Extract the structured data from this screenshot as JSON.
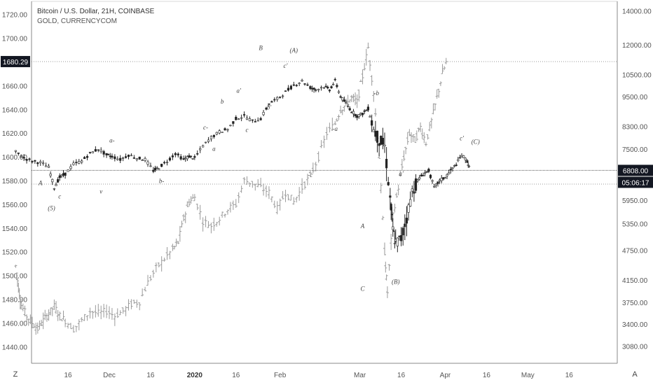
{
  "legend": {
    "primary": "Bitcoin / U.S. Dollar, 21H, COINBASE",
    "secondary": "GOLD, CURRENCYCOM"
  },
  "corner": {
    "left": "Z",
    "right": "A"
  },
  "colors": {
    "main_candle": "#222222",
    "secondary_bar": "#9a9a9a",
    "axis_text": "#555555",
    "grid": "#e6e6e6",
    "badge_dark": "#131722",
    "badge_text": "#ffffff"
  },
  "chart_data": {
    "type": "line",
    "left_axis": {
      "series": "GOLD, CURRENCYCOM",
      "ticks": [
        1440,
        1460,
        1480,
        1500,
        1520,
        1540,
        1560,
        1580,
        1600,
        1620,
        1640,
        1660,
        1680,
        1700,
        1720
      ],
      "tick_labels": [
        "1440.00",
        "1460.00",
        "1480.00",
        "1500.00",
        "1520.00",
        "1540.00",
        "1560.00",
        "1580.00",
        "1600.00",
        "1620.00",
        "1640.00",
        "1660.00",
        "1680.00",
        "1700.00",
        "1720.00"
      ],
      "range": [
        1426,
        1731
      ],
      "current_value": "1680.29",
      "reference_level": 1577
    },
    "right_axis": {
      "series": "Bitcoin / U.S. Dollar, 21H, COINBASE",
      "scale": "log",
      "ticks": [
        3080,
        3400,
        3750,
        4150,
        4750,
        5350,
        5950,
        6800,
        7500,
        8300,
        9500,
        10500,
        12000,
        14000
      ],
      "tick_labels": [
        "3080.00",
        "3400.00",
        "3750.00",
        "4150.00",
        "4750.00",
        "5350.00",
        "5950.00",
        "6800.00",
        "7500.00",
        "8300.00",
        "9500.00",
        "10500.00",
        "12000.00",
        "14000.00"
      ],
      "range": [
        2850,
        14600
      ],
      "current_value": "6808.00",
      "countdown": "05:06:17"
    },
    "x_axis": {
      "labels": [
        "16",
        "Dec",
        "16",
        "2020",
        "16",
        "Feb",
        "Mar",
        "16",
        "Apr",
        "16",
        "May",
        "16"
      ],
      "label_days": [
        -15,
        0,
        15,
        31,
        46,
        62,
        91,
        106,
        122,
        137,
        152,
        167
      ],
      "bold": [
        "2020"
      ]
    },
    "bitcoin_path": [
      [
        -34,
        7400
      ],
      [
        -31,
        7200
      ],
      [
        -28,
        7100
      ],
      [
        -25,
        7050
      ],
      [
        -22,
        6900
      ],
      [
        -20,
        6300
      ],
      [
        -18,
        6600
      ],
      [
        -16,
        6700
      ],
      [
        -13,
        7000
      ],
      [
        -10,
        7100
      ],
      [
        -7,
        7350
      ],
      [
        -4,
        7500
      ],
      [
        -1,
        7300
      ],
      [
        1,
        7250
      ],
      [
        4,
        7150
      ],
      [
        7,
        7300
      ],
      [
        10,
        7200
      ],
      [
        13,
        7150
      ],
      [
        16,
        6800
      ],
      [
        18,
        6900
      ],
      [
        21,
        7100
      ],
      [
        24,
        7350
      ],
      [
        27,
        7150
      ],
      [
        29,
        7250
      ],
      [
        31,
        7200
      ],
      [
        34,
        7600
      ],
      [
        37,
        7900
      ],
      [
        40,
        8100
      ],
      [
        43,
        8200
      ],
      [
        46,
        8600
      ],
      [
        49,
        8700
      ],
      [
        52,
        8500
      ],
      [
        55,
        8600
      ],
      [
        58,
        9200
      ],
      [
        61,
        9400
      ],
      [
        64,
        9700
      ],
      [
        67,
        10000
      ],
      [
        70,
        10200
      ],
      [
        73,
        9900
      ],
      [
        75,
        9800
      ],
      [
        78,
        9950
      ],
      [
        80,
        9800
      ],
      [
        82,
        10200
      ],
      [
        84,
        9500
      ],
      [
        86,
        9200
      ],
      [
        88,
        8900
      ],
      [
        90,
        8700
      ],
      [
        92,
        8800
      ],
      [
        94,
        9000
      ],
      [
        96,
        8200
      ],
      [
        98,
        7800
      ],
      [
        100,
        7600
      ],
      [
        102,
        6000
      ],
      [
        103,
        5200
      ],
      [
        104,
        4900
      ],
      [
        106,
        5000
      ],
      [
        108,
        5500
      ],
      [
        110,
        6200
      ],
      [
        112,
        6500
      ],
      [
        114,
        6700
      ],
      [
        116,
        6800
      ],
      [
        118,
        6300
      ],
      [
        120,
        6500
      ],
      [
        122,
        6600
      ],
      [
        124,
        6800
      ],
      [
        126,
        7000
      ],
      [
        128,
        7300
      ],
      [
        130,
        7100
      ],
      [
        131,
        6808
      ]
    ],
    "gold_path": [
      [
        -34,
        1508
      ],
      [
        -33,
        1490
      ],
      [
        -32,
        1475
      ],
      [
        -30,
        1466
      ],
      [
        -28,
        1460
      ],
      [
        -26,
        1455
      ],
      [
        -24,
        1462
      ],
      [
        -22,
        1468
      ],
      [
        -20,
        1474
      ],
      [
        -18,
        1466
      ],
      [
        -16,
        1462
      ],
      [
        -13,
        1455
      ],
      [
        -10,
        1462
      ],
      [
        -7,
        1470
      ],
      [
        -4,
        1468
      ],
      [
        -1,
        1470
      ],
      [
        2,
        1466
      ],
      [
        5,
        1470
      ],
      [
        8,
        1476
      ],
      [
        11,
        1478
      ],
      [
        14,
        1494
      ],
      [
        17,
        1506
      ],
      [
        20,
        1514
      ],
      [
        23,
        1522
      ],
      [
        25,
        1528
      ],
      [
        27,
        1548
      ],
      [
        29,
        1562
      ],
      [
        31,
        1566
      ],
      [
        34,
        1546
      ],
      [
        37,
        1542
      ],
      [
        40,
        1548
      ],
      [
        43,
        1556
      ],
      [
        46,
        1560
      ],
      [
        49,
        1580
      ],
      [
        52,
        1578
      ],
      [
        55,
        1574
      ],
      [
        58,
        1570
      ],
      [
        61,
        1556
      ],
      [
        64,
        1570
      ],
      [
        67,
        1562
      ],
      [
        70,
        1574
      ],
      [
        73,
        1584
      ],
      [
        76,
        1600
      ],
      [
        79,
        1620
      ],
      [
        82,
        1628
      ],
      [
        84,
        1640
      ],
      [
        86,
        1644
      ],
      [
        88,
        1650
      ],
      [
        90,
        1646
      ],
      [
        92,
        1668
      ],
      [
        94,
        1692
      ],
      [
        96,
        1654
      ],
      [
        98,
        1600
      ],
      [
        100,
        1520
      ],
      [
        101,
        1486
      ],
      [
        103,
        1550
      ],
      [
        105,
        1574
      ],
      [
        107,
        1600
      ],
      [
        109,
        1620
      ],
      [
        111,
        1614
      ],
      [
        113,
        1625
      ],
      [
        115,
        1612
      ],
      [
        117,
        1630
      ],
      [
        119,
        1650
      ],
      [
        121,
        1670
      ],
      [
        123,
        1684
      ]
    ],
    "annotations": [
      {
        "text": "(A)",
        "day": 67,
        "price": 1688,
        "axis": "left"
      },
      {
        "text": "B",
        "day": 55,
        "price": 1690,
        "axis": "left"
      },
      {
        "text": "c'",
        "day": 64,
        "price": 1675,
        "axis": "left"
      },
      {
        "text": "a'",
        "day": 47,
        "price": 1654,
        "axis": "left"
      },
      {
        "text": "b",
        "day": 41,
        "price": 1645,
        "axis": "left"
      },
      {
        "text": "b'",
        "day": 58,
        "price": 1640,
        "axis": "left"
      },
      {
        "text": "c",
        "day": 50,
        "price": 1621,
        "axis": "left"
      },
      {
        "text": "c-",
        "day": 35,
        "price": 1623,
        "axis": "left"
      },
      {
        "text": "a",
        "day": 38,
        "price": 1605,
        "axis": "left"
      },
      {
        "text": "a-",
        "day": 1,
        "price": 1612,
        "axis": "left"
      },
      {
        "text": "b-",
        "day": 19,
        "price": 1578,
        "axis": "left"
      },
      {
        "text": "A",
        "day": -25,
        "price": 1576,
        "axis": "left"
      },
      {
        "text": "c",
        "day": -18,
        "price": 1565,
        "axis": "left"
      },
      {
        "text": "v",
        "day": -3,
        "price": 1569,
        "axis": "left"
      },
      {
        "text": "(5)",
        "day": -21,
        "price": 1555,
        "axis": "left"
      },
      {
        "text": "-b",
        "day": 97,
        "price": 1652,
        "axis": "left"
      },
      {
        "text": "-a",
        "day": 82,
        "price": 1622,
        "axis": "left"
      },
      {
        "text": "-c",
        "day": 73,
        "price": 1583,
        "axis": "left"
      },
      {
        "text": "a'",
        "day": 106,
        "price": 1584,
        "axis": "left"
      },
      {
        "text": "c'",
        "day": 128,
        "price": 1614,
        "axis": "left"
      },
      {
        "text": "(C)",
        "day": 133,
        "price": 1611,
        "axis": "left"
      },
      {
        "text": "A",
        "day": 92,
        "price": 1540,
        "axis": "left"
      },
      {
        "text": "C",
        "day": 92,
        "price": 1487,
        "axis": "left"
      },
      {
        "text": "(B)",
        "day": 104,
        "price": 1493,
        "axis": "left"
      }
    ]
  }
}
